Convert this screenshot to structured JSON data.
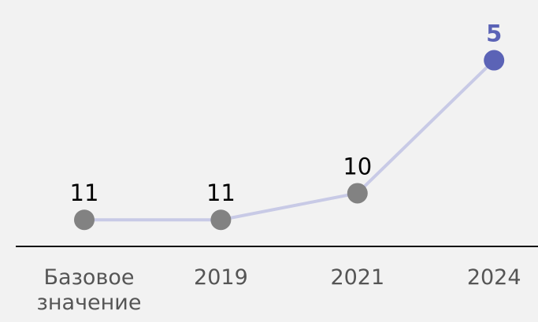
{
  "chart_data": {
    "type": "line",
    "categories": [
      "Базовое значение",
      "2019",
      "2021",
      "2024"
    ],
    "values": [
      11,
      11,
      10,
      5
    ],
    "color": "#c8cae6",
    "marker_colors": [
      "#828282",
      "#828282",
      "#828282",
      "#5b63b6"
    ],
    "label_colors": [
      "#000000",
      "#000000",
      "#000000",
      "#5b63b6"
    ],
    "ylim": [
      12,
      3
    ],
    "inverted_y": true
  }
}
